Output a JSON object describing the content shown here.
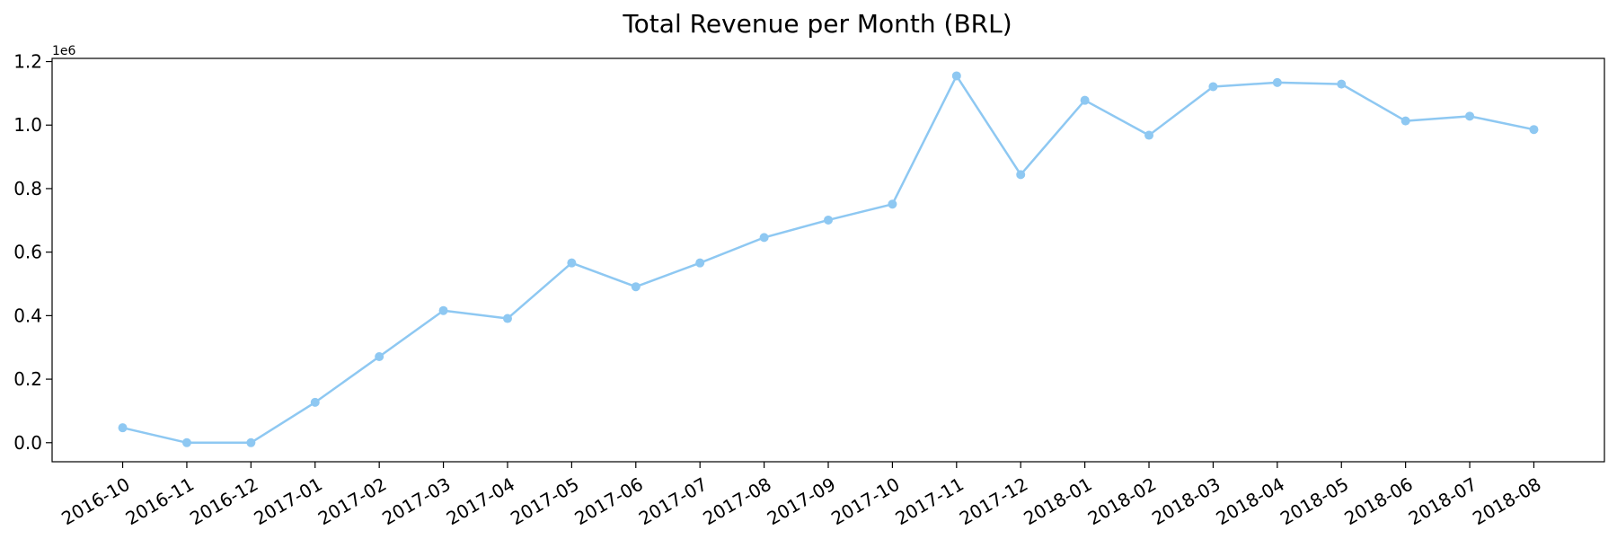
{
  "chart_data": {
    "type": "line",
    "title": "Total Revenue per Month (BRL)",
    "xlabel": "",
    "ylabel": "",
    "y_offset_label": "1e6",
    "y_scale_factor": 1000000,
    "ylim": [
      -0.06,
      1.21
    ],
    "yticks": [
      0.0,
      0.2,
      0.4,
      0.6,
      0.8,
      1.0,
      1.2
    ],
    "ytick_labels": [
      "0.0",
      "0.2",
      "0.4",
      "0.6",
      "0.8",
      "1.0",
      "1.2"
    ],
    "grid": false,
    "legend": "none",
    "categories": [
      "2016-10",
      "2016-11",
      "2016-12",
      "2017-01",
      "2017-02",
      "2017-03",
      "2017-04",
      "2017-05",
      "2017-06",
      "2017-07",
      "2017-08",
      "2017-09",
      "2017-10",
      "2017-11",
      "2017-12",
      "2018-01",
      "2018-02",
      "2018-03",
      "2018-04",
      "2018-05",
      "2018-06",
      "2018-07",
      "2018-08"
    ],
    "series": [
      {
        "color": "#8ec8f2",
        "values": [
          0.047,
          0.0,
          0.0,
          0.127,
          0.271,
          0.416,
          0.391,
          0.566,
          0.491,
          0.566,
          0.646,
          0.701,
          0.751,
          1.155,
          0.844,
          1.078,
          0.968,
          1.121,
          1.134,
          1.129,
          1.013,
          1.028,
          0.986
        ]
      }
    ]
  }
}
